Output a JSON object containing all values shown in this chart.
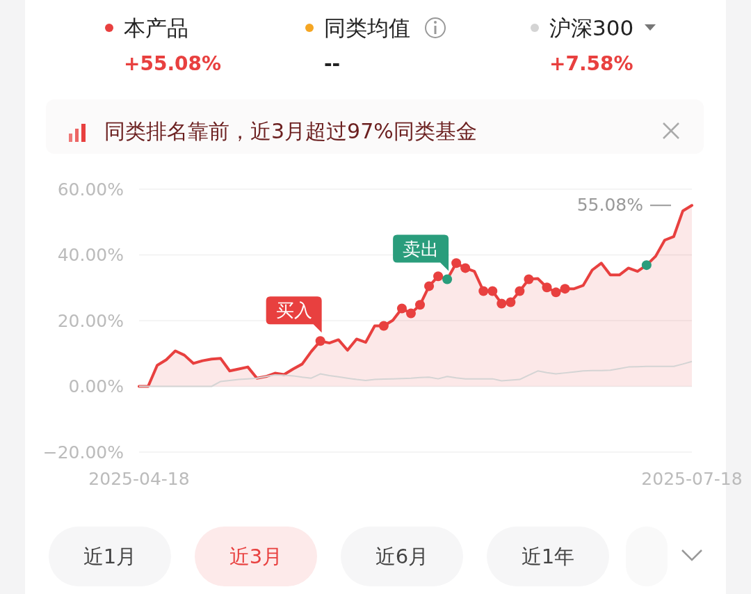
{
  "chart_data": {
    "type": "area",
    "subtitle": "同类排名靠前，近3月超过97%同类基金",
    "categories": [
      "2025-04-18",
      null,
      null,
      null,
      null,
      null,
      null,
      null,
      null,
      null,
      null,
      null,
      null,
      null,
      null,
      null,
      null,
      null,
      null,
      null,
      null,
      null,
      null,
      null,
      null,
      null,
      null,
      null,
      null,
      null,
      null,
      null,
      null,
      null,
      null,
      null,
      null,
      null,
      null,
      null,
      null,
      null,
      null,
      null,
      null,
      null,
      null,
      null,
      null,
      null,
      null,
      null,
      null,
      null,
      null,
      null,
      null,
      null,
      null,
      null,
      null,
      "2025-07-18"
    ],
    "ylim": [
      -20,
      60
    ],
    "yticks": [
      {
        "value": -20,
        "label": "−20.00%"
      },
      {
        "value": 0,
        "label": "0.00%"
      },
      {
        "value": 20,
        "label": "20.00%"
      },
      {
        "value": 40,
        "label": "40.00%"
      },
      {
        "value": 60,
        "label": "60.00%"
      }
    ],
    "grid": "y",
    "legend": "top",
    "series": [
      {
        "name": "本产品",
        "color": "#e8403f",
        "values": [
          0,
          0,
          6.4,
          8.1,
          10.8,
          9.5,
          7.0,
          7.8,
          8.3,
          8.5,
          4.7,
          5.3,
          5.9,
          2.5,
          3.0,
          4.0,
          3.6,
          5.3,
          6.8,
          10.6,
          13.8,
          13.2,
          14.2,
          11.0,
          14.4,
          13.4,
          18.4,
          18.4,
          20.1,
          23.7,
          22.2,
          24.8,
          30.5,
          33.5,
          32.6,
          37.5,
          36.0,
          35.0,
          29.0,
          29.0,
          25.2,
          25.6,
          29.0,
          32.6,
          32.8,
          30.1,
          28.6,
          29.7,
          29.7,
          30.7,
          35.4,
          37.5,
          33.9,
          33.9,
          36.0,
          35.0,
          36.9,
          39.6,
          44.5,
          45.6,
          53.4,
          55.08
        ]
      },
      {
        "name": "同类均值",
        "color": "#f5a623",
        "type": "line",
        "values": [
          null,
          null,
          null,
          null,
          null,
          null,
          null,
          null,
          null,
          null,
          null,
          null,
          null,
          null,
          null,
          null,
          null,
          null,
          null,
          null,
          null,
          null,
          null,
          null,
          null,
          null,
          null,
          null,
          null,
          null,
          null,
          null,
          null,
          null,
          null,
          null,
          null,
          null,
          null,
          null,
          null,
          null,
          null,
          null,
          null,
          null,
          null,
          null,
          null,
          null,
          null,
          null,
          null,
          null,
          null,
          null,
          null,
          null,
          null,
          null,
          null,
          null
        ]
      },
      {
        "name": "沪深300",
        "color": "#d4d4d4",
        "type": "line",
        "values": [
          0,
          0,
          0,
          0,
          0,
          0,
          0,
          0,
          0,
          1.5,
          1.8,
          2.1,
          2.3,
          2.5,
          3.0,
          3.5,
          3.4,
          3.2,
          2.8,
          2.5,
          3.8,
          3.3,
          2.9,
          2.5,
          2.1,
          1.8,
          2.1,
          2.2,
          2.3,
          2.4,
          2.5,
          2.7,
          2.8,
          2.3,
          3.0,
          2.6,
          2.3,
          2.3,
          2.3,
          2.3,
          1.7,
          1.9,
          2.1,
          3.4,
          4.7,
          4.2,
          3.8,
          4.1,
          4.4,
          4.7,
          4.8,
          4.8,
          4.9,
          5.4,
          5.9,
          6.0,
          6.1,
          6.1,
          6.1,
          6.1,
          6.8,
          7.58
        ]
      },
      {
        "name": "买入",
        "type": "scatter",
        "color": "#e8403f",
        "marker": "circle",
        "values": [
          null,
          null,
          null,
          null,
          null,
          null,
          null,
          null,
          null,
          null,
          null,
          null,
          null,
          null,
          null,
          null,
          null,
          null,
          null,
          null,
          13.8,
          null,
          null,
          null,
          null,
          null,
          null,
          null,
          null,
          null,
          null,
          null,
          null,
          null,
          null,
          null,
          null,
          null,
          null,
          null,
          null,
          null,
          null,
          null,
          null,
          null,
          null,
          null,
          null,
          null,
          null,
          null,
          null,
          null,
          null,
          null,
          null,
          null,
          null,
          null,
          null,
          null
        ]
      },
      {
        "type": "scatter",
        "color": "#e8403f",
        "marker": "circle",
        "values": [
          null,
          null,
          null,
          null,
          null,
          null,
          null,
          null,
          null,
          null,
          null,
          null,
          null,
          null,
          null,
          null,
          null,
          null,
          null,
          null,
          null,
          null,
          null,
          null,
          null,
          null,
          null,
          18.4,
          null,
          23.7,
          22.2,
          24.8,
          30.5,
          33.5,
          null,
          37.5,
          36.0,
          null,
          29.0,
          29.0,
          25.2,
          25.6,
          29.0,
          32.6,
          null,
          30.1,
          28.6,
          29.7,
          null,
          null,
          null,
          null,
          null,
          null,
          null,
          null,
          null,
          null,
          null,
          null,
          null,
          null
        ]
      },
      {
        "name": "卖出",
        "type": "scatter",
        "color": "#2a9d7c",
        "marker": "circle",
        "values": [
          null,
          null,
          null,
          null,
          null,
          null,
          null,
          null,
          null,
          null,
          null,
          null,
          null,
          null,
          null,
          null,
          null,
          null,
          null,
          null,
          null,
          null,
          null,
          null,
          null,
          null,
          null,
          null,
          null,
          null,
          null,
          null,
          null,
          null,
          32.6,
          null,
          null,
          null,
          null,
          null,
          null,
          null,
          null,
          null,
          null,
          null,
          null,
          null,
          null,
          null,
          null,
          null,
          null,
          null,
          null,
          null,
          36.9,
          null,
          null,
          null,
          null,
          null
        ]
      }
    ],
    "annotations": [
      "+55.08%",
      "--",
      "+7.58%",
      "55.08%",
      "近1月",
      "近3月",
      "近6月",
      "近1年"
    ]
  }
}
